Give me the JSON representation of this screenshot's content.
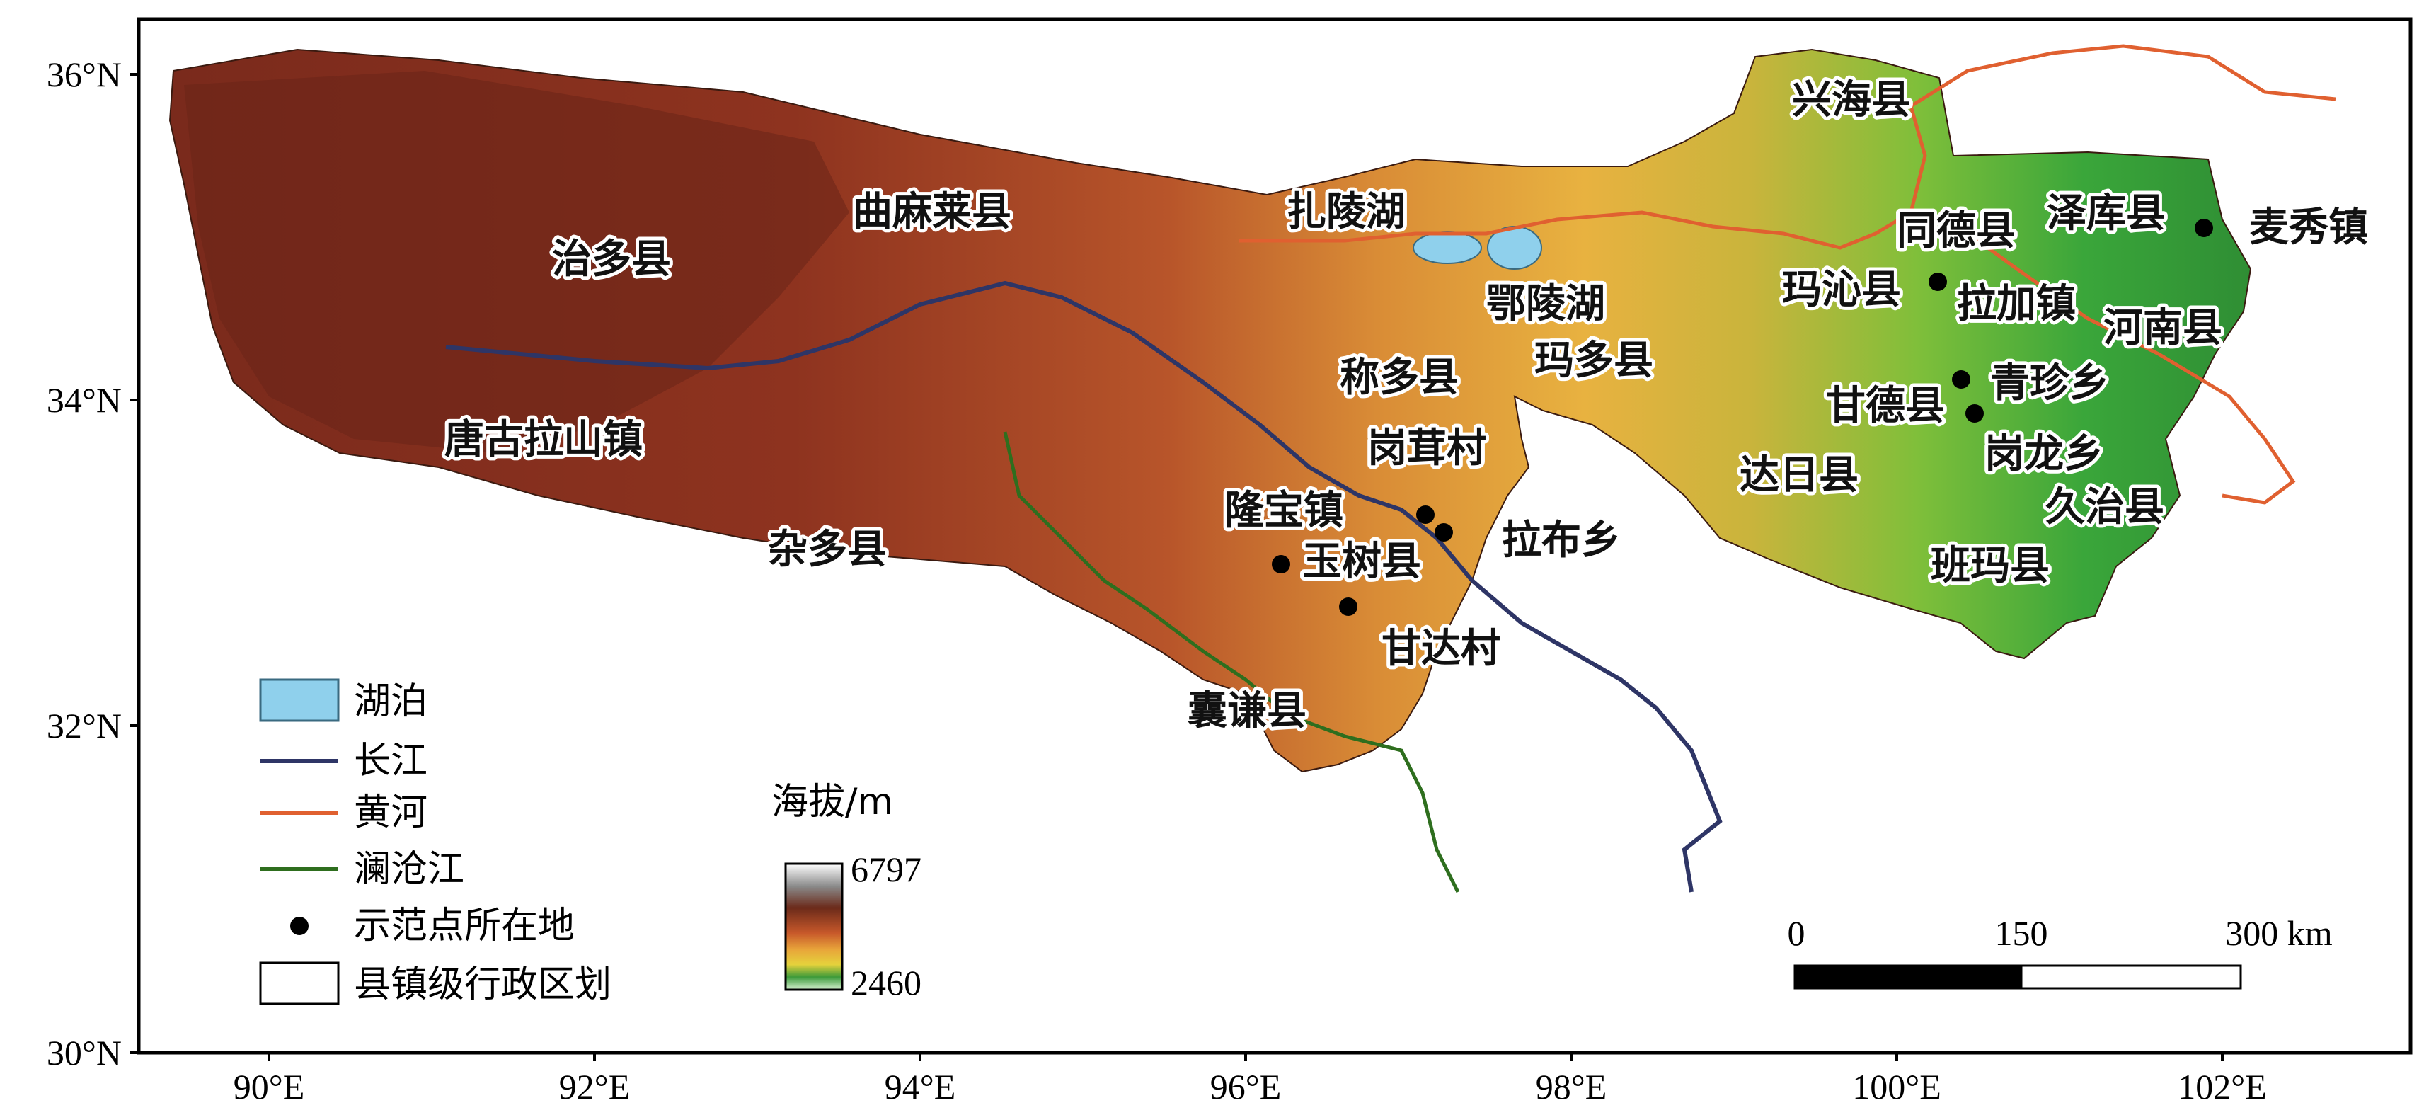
{
  "axes": {
    "lat_ticks": [
      "36°N",
      "34°N",
      "32°N",
      "30°N"
    ],
    "lon_ticks": [
      "90°E",
      "92°E",
      "94°E",
      "96°E",
      "98°E",
      "100°E",
      "102°E"
    ]
  },
  "labels": {
    "zhiduo": "治多县",
    "qumalai": "曲麻莱县",
    "zhaling": "扎陵湖",
    "eling": "鄂陵湖",
    "xinghai": "兴海县",
    "tongde": "同德县",
    "zeku": "泽库县",
    "maixiu": "麦秀镇",
    "maqin": "玛沁县",
    "lajia": "拉加镇",
    "henan": "河南县",
    "chenduo": "称多县",
    "maduo": "玛多县",
    "gande": "甘德县",
    "qingzhen": "青珍乡",
    "tanggula": "唐古拉山镇",
    "gangrong": "岗茸村",
    "darì": "达日县",
    "ganglong": "岗龙乡",
    "longbao": "隆宝镇",
    "labu": "拉布乡",
    "jiuzhi": "久治县",
    "zaduo": "杂多县",
    "yushu": "玉树县",
    "banma": "班玛县",
    "ganda": "甘达村",
    "nangqian": "囊谦县"
  },
  "legend": {
    "items": [
      {
        "label": "湖泊",
        "type": "fill",
        "color": "#8fd0ec"
      },
      {
        "label": "长江",
        "type": "line",
        "color": "#2e3566"
      },
      {
        "label": "黄河",
        "type": "line",
        "color": "#e06030"
      },
      {
        "label": "澜沧江",
        "type": "line",
        "color": "#2e6e1e"
      },
      {
        "label": "示范点所在地",
        "type": "dot",
        "color": "#000000"
      },
      {
        "label": "县镇级行政区划",
        "type": "box",
        "color": "#ffffff"
      }
    ]
  },
  "elevation": {
    "title": "海拔/m",
    "max": "6797",
    "min": "2460"
  },
  "scale_bar": {
    "labels": [
      "0",
      "150",
      "300 km"
    ]
  },
  "colors": {
    "high": "#7a2a1c",
    "mid": "#d47a2c",
    "low": "#2f9a38"
  }
}
